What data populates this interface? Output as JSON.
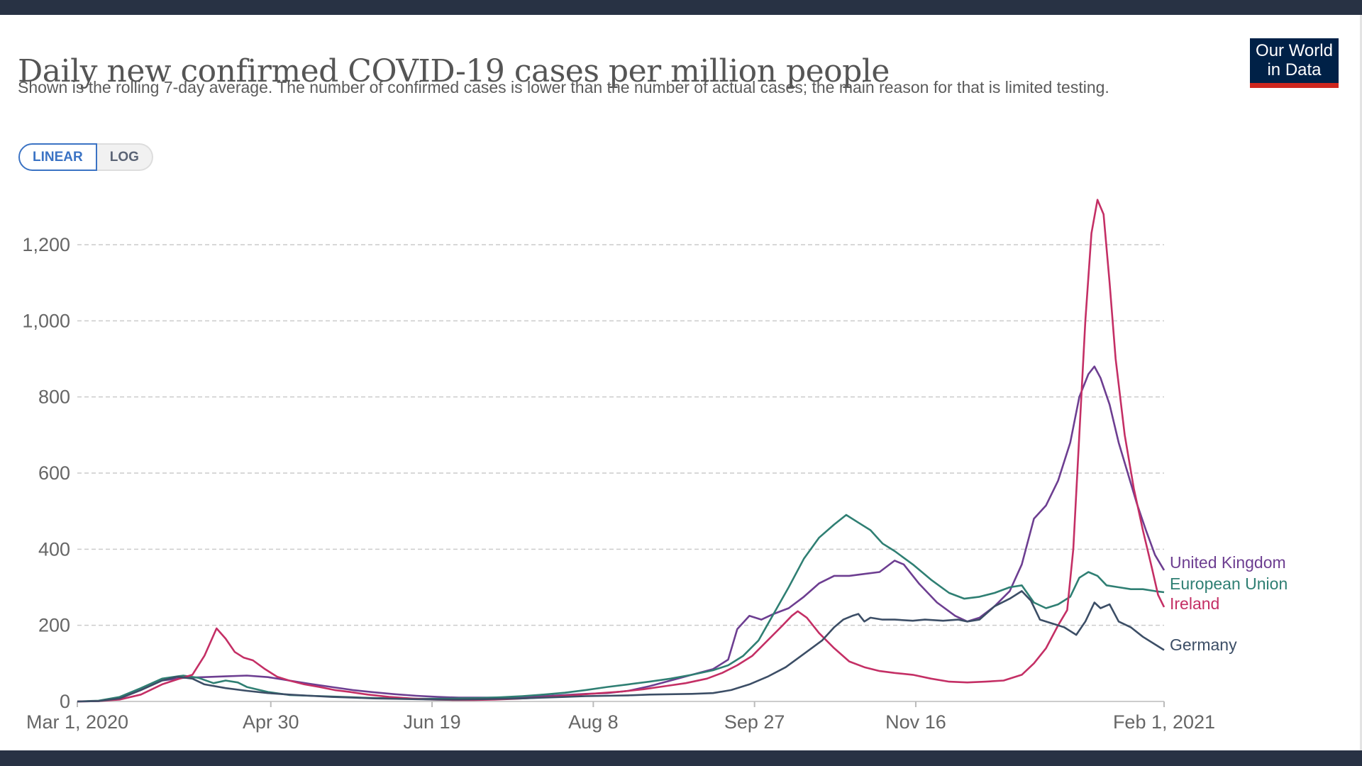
{
  "header": {
    "title": "Daily new confirmed COVID-19 cases per million people",
    "subtitle": "Shown is the rolling 7-day average. The number of confirmed cases is lower than the number of actual cases; the main reason for that is limited testing.",
    "logo_line1": "Our World",
    "logo_line2": "in Data"
  },
  "controls": {
    "linear_label": "LINEAR",
    "log_label": "LOG",
    "selected": "LINEAR"
  },
  "chart_data": {
    "type": "line",
    "title": "Daily new confirmed COVID-19 cases per million people",
    "xlabel": "",
    "ylabel": "",
    "x_start": "2020-03-01",
    "x_end": "2021-02-01",
    "x_unit": "days since Mar 1, 2020",
    "xlim": [
      0,
      337
    ],
    "ylim": [
      0,
      1320
    ],
    "grid": "horizontal dashed",
    "legend_placement": "right (end-of-line labels)",
    "yticks": [
      {
        "value": 0,
        "label": "0"
      },
      {
        "value": 200,
        "label": "200"
      },
      {
        "value": 400,
        "label": "400"
      },
      {
        "value": 600,
        "label": "600"
      },
      {
        "value": 800,
        "label": "800"
      },
      {
        "value": 1000,
        "label": "1,000"
      },
      {
        "value": 1200,
        "label": "1,200"
      }
    ],
    "xticks": [
      {
        "day": 0,
        "label": "Mar 1, 2020"
      },
      {
        "day": 60,
        "label": "Apr 30"
      },
      {
        "day": 110,
        "label": "Jun 19"
      },
      {
        "day": 160,
        "label": "Aug 8"
      },
      {
        "day": 210,
        "label": "Sep 27"
      },
      {
        "day": 260,
        "label": "Nov 16"
      },
      {
        "day": 337,
        "label": "Feb 1, 2021"
      }
    ],
    "series": [
      {
        "name": "United Kingdom",
        "color": "#6d3e91",
        "points": [
          [
            0,
            0
          ],
          [
            7,
            1
          ],
          [
            14,
            8
          ],
          [
            21,
            30
          ],
          [
            28,
            55
          ],
          [
            35,
            62
          ],
          [
            42,
            64
          ],
          [
            49,
            66
          ],
          [
            56,
            68
          ],
          [
            63,
            64
          ],
          [
            70,
            55
          ],
          [
            77,
            46
          ],
          [
            84,
            38
          ],
          [
            91,
            30
          ],
          [
            98,
            24
          ],
          [
            105,
            19
          ],
          [
            112,
            15
          ],
          [
            119,
            12
          ],
          [
            126,
            10
          ],
          [
            133,
            10
          ],
          [
            140,
            10
          ],
          [
            147,
            11
          ],
          [
            154,
            14
          ],
          [
            161,
            17
          ],
          [
            168,
            20
          ],
          [
            175,
            22
          ],
          [
            182,
            28
          ],
          [
            189,
            40
          ],
          [
            196,
            55
          ],
          [
            203,
            70
          ],
          [
            210,
            85
          ],
          [
            215,
            110
          ],
          [
            218,
            190
          ],
          [
            222,
            225
          ],
          [
            226,
            215
          ],
          [
            230,
            230
          ],
          [
            235,
            245
          ],
          [
            240,
            275
          ],
          [
            245,
            310
          ],
          [
            250,
            330
          ],
          [
            255,
            330
          ],
          [
            260,
            335
          ],
          [
            265,
            340
          ],
          [
            270,
            370
          ],
          [
            273,
            360
          ],
          [
            278,
            310
          ],
          [
            284,
            260
          ],
          [
            290,
            225
          ],
          [
            294,
            210
          ],
          [
            298,
            220
          ],
          [
            303,
            250
          ],
          [
            308,
            290
          ],
          [
            312,
            360
          ],
          [
            316,
            480
          ],
          [
            320,
            515
          ],
          [
            324,
            580
          ],
          [
            328,
            680
          ],
          [
            331,
            800
          ],
          [
            334,
            860
          ],
          [
            336,
            880
          ],
          [
            338,
            850
          ],
          [
            341,
            780
          ],
          [
            344,
            680
          ],
          [
            347,
            600
          ],
          [
            350,
            520
          ],
          [
            353,
            450
          ],
          [
            356,
            385
          ],
          [
            359,
            345
          ]
        ]
      },
      {
        "name": "European Union",
        "color": "#2f7f73",
        "points": [
          [
            0,
            0
          ],
          [
            7,
            2
          ],
          [
            14,
            12
          ],
          [
            21,
            35
          ],
          [
            28,
            60
          ],
          [
            35,
            68
          ],
          [
            40,
            62
          ],
          [
            45,
            48
          ],
          [
            49,
            55
          ],
          [
            53,
            50
          ],
          [
            56,
            38
          ],
          [
            63,
            25
          ],
          [
            70,
            17
          ],
          [
            77,
            15
          ],
          [
            84,
            13
          ],
          [
            91,
            11
          ],
          [
            98,
            9
          ],
          [
            105,
            8
          ],
          [
            112,
            7
          ],
          [
            119,
            7
          ],
          [
            126,
            8
          ],
          [
            133,
            9
          ],
          [
            140,
            11
          ],
          [
            147,
            14
          ],
          [
            154,
            18
          ],
          [
            161,
            23
          ],
          [
            168,
            30
          ],
          [
            175,
            38
          ],
          [
            182,
            45
          ],
          [
            189,
            52
          ],
          [
            196,
            60
          ],
          [
            203,
            70
          ],
          [
            210,
            82
          ],
          [
            215,
            95
          ],
          [
            220,
            120
          ],
          [
            225,
            160
          ],
          [
            230,
            230
          ],
          [
            235,
            300
          ],
          [
            240,
            375
          ],
          [
            245,
            430
          ],
          [
            250,
            465
          ],
          [
            254,
            490
          ],
          [
            258,
            470
          ],
          [
            262,
            450
          ],
          [
            266,
            415
          ],
          [
            270,
            395
          ],
          [
            276,
            360
          ],
          [
            282,
            320
          ],
          [
            288,
            285
          ],
          [
            293,
            270
          ],
          [
            298,
            275
          ],
          [
            303,
            285
          ],
          [
            308,
            300
          ],
          [
            312,
            305
          ],
          [
            316,
            260
          ],
          [
            320,
            245
          ],
          [
            324,
            255
          ],
          [
            328,
            275
          ],
          [
            331,
            325
          ],
          [
            334,
            340
          ],
          [
            337,
            330
          ],
          [
            340,
            305
          ],
          [
            344,
            300
          ],
          [
            348,
            295
          ],
          [
            352,
            295
          ],
          [
            356,
            290
          ],
          [
            359,
            287
          ]
        ]
      },
      {
        "name": "Ireland",
        "color": "#c42f65",
        "points": [
          [
            0,
            0
          ],
          [
            7,
            1
          ],
          [
            14,
            5
          ],
          [
            21,
            18
          ],
          [
            28,
            45
          ],
          [
            33,
            58
          ],
          [
            38,
            70
          ],
          [
            42,
            120
          ],
          [
            46,
            192
          ],
          [
            49,
            165
          ],
          [
            52,
            130
          ],
          [
            55,
            115
          ],
          [
            58,
            108
          ],
          [
            62,
            85
          ],
          [
            66,
            65
          ],
          [
            70,
            55
          ],
          [
            75,
            45
          ],
          [
            80,
            38
          ],
          [
            85,
            30
          ],
          [
            90,
            25
          ],
          [
            96,
            18
          ],
          [
            103,
            12
          ],
          [
            110,
            8
          ],
          [
            117,
            5
          ],
          [
            124,
            4
          ],
          [
            131,
            4
          ],
          [
            138,
            5
          ],
          [
            145,
            7
          ],
          [
            152,
            10
          ],
          [
            159,
            14
          ],
          [
            166,
            18
          ],
          [
            173,
            22
          ],
          [
            180,
            26
          ],
          [
            187,
            32
          ],
          [
            194,
            40
          ],
          [
            201,
            48
          ],
          [
            208,
            60
          ],
          [
            213,
            75
          ],
          [
            218,
            95
          ],
          [
            223,
            120
          ],
          [
            228,
            160
          ],
          [
            233,
            200
          ],
          [
            236,
            225
          ],
          [
            238,
            237
          ],
          [
            241,
            220
          ],
          [
            245,
            180
          ],
          [
            250,
            140
          ],
          [
            255,
            105
          ],
          [
            260,
            90
          ],
          [
            265,
            80
          ],
          [
            270,
            75
          ],
          [
            276,
            70
          ],
          [
            282,
            60
          ],
          [
            288,
            52
          ],
          [
            294,
            50
          ],
          [
            300,
            52
          ],
          [
            306,
            55
          ],
          [
            312,
            70
          ],
          [
            316,
            100
          ],
          [
            320,
            140
          ],
          [
            324,
            200
          ],
          [
            327,
            240
          ],
          [
            329,
            400
          ],
          [
            331,
            700
          ],
          [
            333,
            1000
          ],
          [
            335,
            1230
          ],
          [
            337,
            1318
          ],
          [
            339,
            1280
          ],
          [
            341,
            1100
          ],
          [
            343,
            900
          ],
          [
            346,
            700
          ],
          [
            349,
            560
          ],
          [
            352,
            450
          ],
          [
            355,
            350
          ],
          [
            357,
            280
          ],
          [
            359,
            248
          ]
        ]
      },
      {
        "name": "Germany",
        "color": "#3c4e66",
        "points": [
          [
            0,
            0
          ],
          [
            7,
            1
          ],
          [
            14,
            8
          ],
          [
            21,
            30
          ],
          [
            28,
            55
          ],
          [
            33,
            65
          ],
          [
            38,
            60
          ],
          [
            42,
            45
          ],
          [
            49,
            35
          ],
          [
            56,
            28
          ],
          [
            63,
            22
          ],
          [
            70,
            18
          ],
          [
            77,
            15
          ],
          [
            84,
            12
          ],
          [
            91,
            10
          ],
          [
            98,
            8
          ],
          [
            105,
            7
          ],
          [
            112,
            6
          ],
          [
            119,
            5
          ],
          [
            126,
            5
          ],
          [
            133,
            6
          ],
          [
            140,
            7
          ],
          [
            147,
            8
          ],
          [
            154,
            10
          ],
          [
            161,
            12
          ],
          [
            168,
            14
          ],
          [
            175,
            15
          ],
          [
            182,
            16
          ],
          [
            189,
            18
          ],
          [
            196,
            19
          ],
          [
            203,
            20
          ],
          [
            210,
            22
          ],
          [
            216,
            30
          ],
          [
            222,
            45
          ],
          [
            228,
            65
          ],
          [
            234,
            90
          ],
          [
            240,
            125
          ],
          [
            246,
            160
          ],
          [
            250,
            195
          ],
          [
            253,
            215
          ],
          [
            256,
            225
          ],
          [
            258,
            230
          ],
          [
            260,
            210
          ],
          [
            262,
            220
          ],
          [
            266,
            215
          ],
          [
            270,
            215
          ],
          [
            276,
            212
          ],
          [
            280,
            215
          ],
          [
            286,
            212
          ],
          [
            291,
            215
          ],
          [
            294,
            210
          ],
          [
            298,
            215
          ],
          [
            303,
            250
          ],
          [
            308,
            270
          ],
          [
            312,
            290
          ],
          [
            315,
            265
          ],
          [
            318,
            215
          ],
          [
            322,
            205
          ],
          [
            326,
            195
          ],
          [
            330,
            175
          ],
          [
            333,
            210
          ],
          [
            336,
            260
          ],
          [
            338,
            245
          ],
          [
            341,
            255
          ],
          [
            344,
            210
          ],
          [
            348,
            195
          ],
          [
            352,
            170
          ],
          [
            356,
            150
          ],
          [
            359,
            135
          ]
        ]
      }
    ]
  },
  "legend": {
    "items": [
      {
        "label": "United Kingdom",
        "color": "#6d3e91"
      },
      {
        "label": "European Union",
        "color": "#2f7f73"
      },
      {
        "label": "Ireland",
        "color": "#c42f65"
      },
      {
        "label": "Germany",
        "color": "#3c4e66"
      }
    ]
  }
}
